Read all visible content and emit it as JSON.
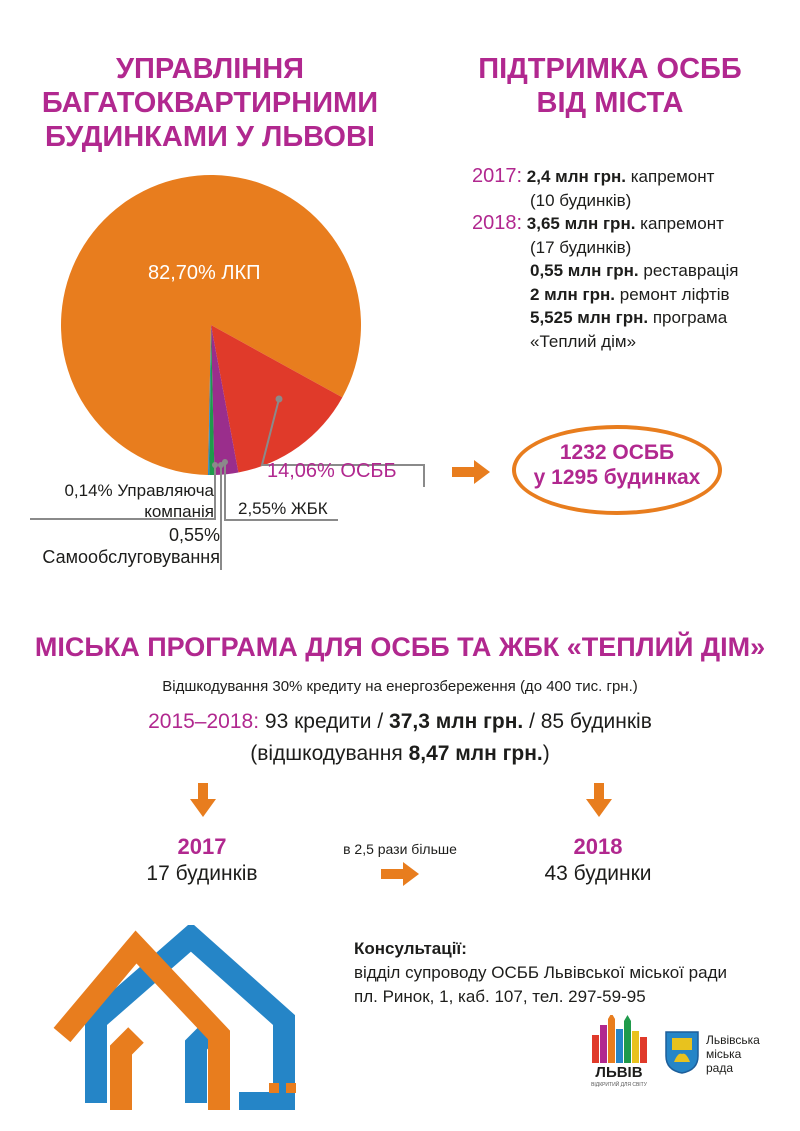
{
  "left_title": [
    "УПРАВЛІННЯ",
    "БАГАТОКВАРТИРНИМИ",
    "БУДИНКАМИ У ЛЬВОВІ"
  ],
  "right_title": [
    "ПІДТРИМКА ОСББ",
    "ВІД МІСТА"
  ],
  "chart_data": {
    "type": "pie",
    "slices": [
      {
        "label": "82,70% ЛКП",
        "value": 82.7,
        "color": "#e87d1e"
      },
      {
        "label": "14,06% ОСББ",
        "value": 14.06,
        "color": "#e03a2a"
      },
      {
        "label": "2,55% ЖБК",
        "value": 2.55,
        "color": "#9a2e8c"
      },
      {
        "label": "0,55% Самообслуговування",
        "value": 0.55,
        "color": "#1f9a4b"
      },
      {
        "label": "0,14% Управляюча компанія",
        "value": 0.14,
        "color": "#2585c7"
      }
    ]
  },
  "pie_labels": {
    "lkp": "82,70% ЛКП",
    "osbb": "14,06% ОСББ",
    "zhbk": "2,55% ЖБК",
    "samo_pct": "0,55%",
    "samo_name": "Самообслуговування",
    "uk_pct": "0,14% Управляюча",
    "uk_name": "компанія"
  },
  "support": {
    "y2017": "2017:",
    "y2017_amount": "2,4 млн грн.",
    "y2017_desc": "капремонт",
    "y2017_note": "(10 будинків)",
    "y2018": "2018:",
    "y2018_amount": "3,65 млн грн.",
    "y2018_desc": "капремонт",
    "y2018_note": "(17 будинків)",
    "r1_amount": "0,55 млн грн.",
    "r1_desc": "реставрація",
    "r2_amount": "2 млн грн.",
    "r2_desc": "ремонт ліфтів",
    "r3_amount": "5,525 млн грн.",
    "r3_desc": "програма",
    "r3_note": "«Теплий дім»"
  },
  "osbb_total": [
    "1232 ОСББ",
    "у 1295 будинках"
  ],
  "program": {
    "title": "МІСЬКА ПРОГРАМА ДЛЯ ОСББ ТА ЖБК «ТЕПЛИЙ ДІМ»",
    "subtitle": "Відшкодування 30% кредиту на енергозбереження (до 400 тис. грн.)",
    "period": "2015–2018:",
    "credits": "93 кредити /",
    "amount": "37,3 млн грн.",
    "houses": "/ 85 будинків",
    "comp_open": "(відшкодування",
    "comp_amount": "8,47 млн грн.",
    "comp_close": ")"
  },
  "compare": {
    "y2017": "2017",
    "y2017_val": "17 будинків",
    "y2018": "2018",
    "y2018_val": "43 будинки",
    "middle": "в 2,5 рази більше"
  },
  "consult": {
    "heading": "Консультації:",
    "line1": "відділ супроводу ОСББ Львівської міської ради",
    "line2": "пл. Ринок, 1, каб. 107, тел. 297-59-95"
  },
  "logos": {
    "lviv": "ЛЬВІВ",
    "lviv_tag": "ВІДКРИТИЙ ДЛЯ СВІТУ",
    "council": [
      "Львівська",
      "міська",
      "рада"
    ]
  },
  "colors": {
    "purple": "#b1288f",
    "orange": "#e87d1e",
    "blue": "#2585c7",
    "red": "#e03a2a",
    "green": "#1f9a4b"
  }
}
